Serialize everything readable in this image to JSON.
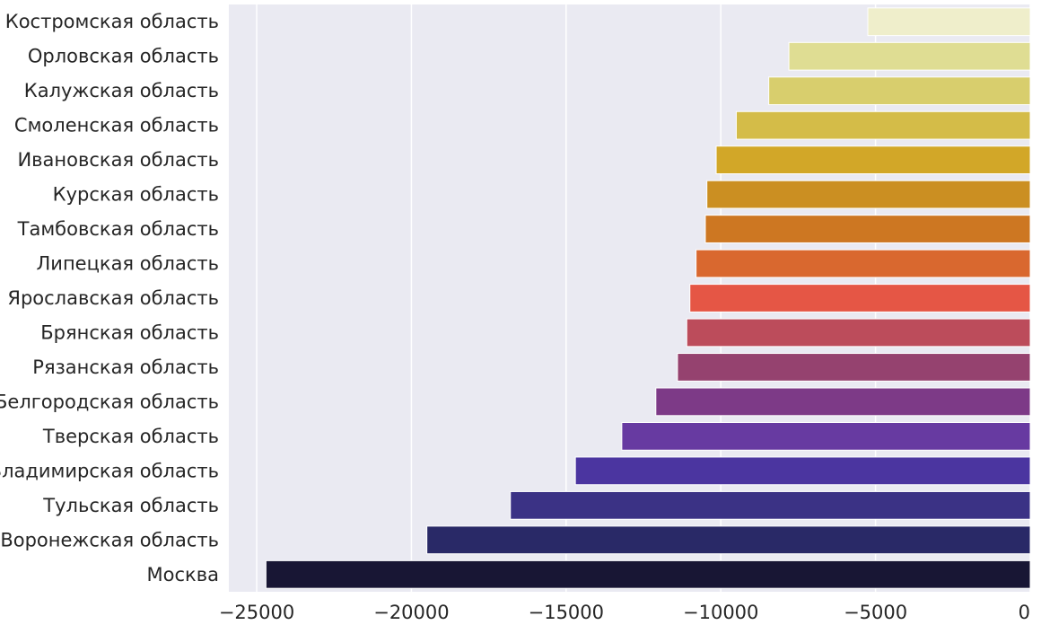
{
  "chart_data": {
    "type": "bar",
    "orientation": "horizontal",
    "categories": [
      "Костромская область",
      "Орловская область",
      "Калужская область",
      "Смоленская область",
      "Ивановская область",
      "Курская область",
      "Тамбовская область",
      "Липецкая область",
      "Ярославская область",
      "Брянская область",
      "Рязанская область",
      "Белгородская область",
      "Тверская область",
      "Владимирская область",
      "Тульская область",
      "Воронежская область",
      "Москва"
    ],
    "values": [
      -5250,
      -7800,
      -8450,
      -9500,
      -10150,
      -10450,
      -10500,
      -10800,
      -11000,
      -11100,
      -11400,
      -12100,
      -13200,
      -14700,
      -16800,
      -19500,
      -24700
    ],
    "colors": [
      "#efeecb",
      "#dfdd93",
      "#d8ce6d",
      "#d4bc48",
      "#d2a728",
      "#cb8f22",
      "#cd7722",
      "#d9682f",
      "#e55645",
      "#bc4c5b",
      "#95426f",
      "#7d3a87",
      "#673aa1",
      "#4b35a0",
      "#3b3285",
      "#292967",
      "#181634"
    ],
    "xlim": [
      -25900,
      0
    ],
    "xticks": [
      -25000,
      -20000,
      -15000,
      -10000,
      -5000,
      0
    ],
    "xtick_labels": [
      "−25000",
      "−20000",
      "−15000",
      "−10000",
      "−5000",
      "0"
    ],
    "grid": true,
    "background": "#eaeaf2",
    "xlabel": "",
    "ylabel": "",
    "title": ""
  }
}
